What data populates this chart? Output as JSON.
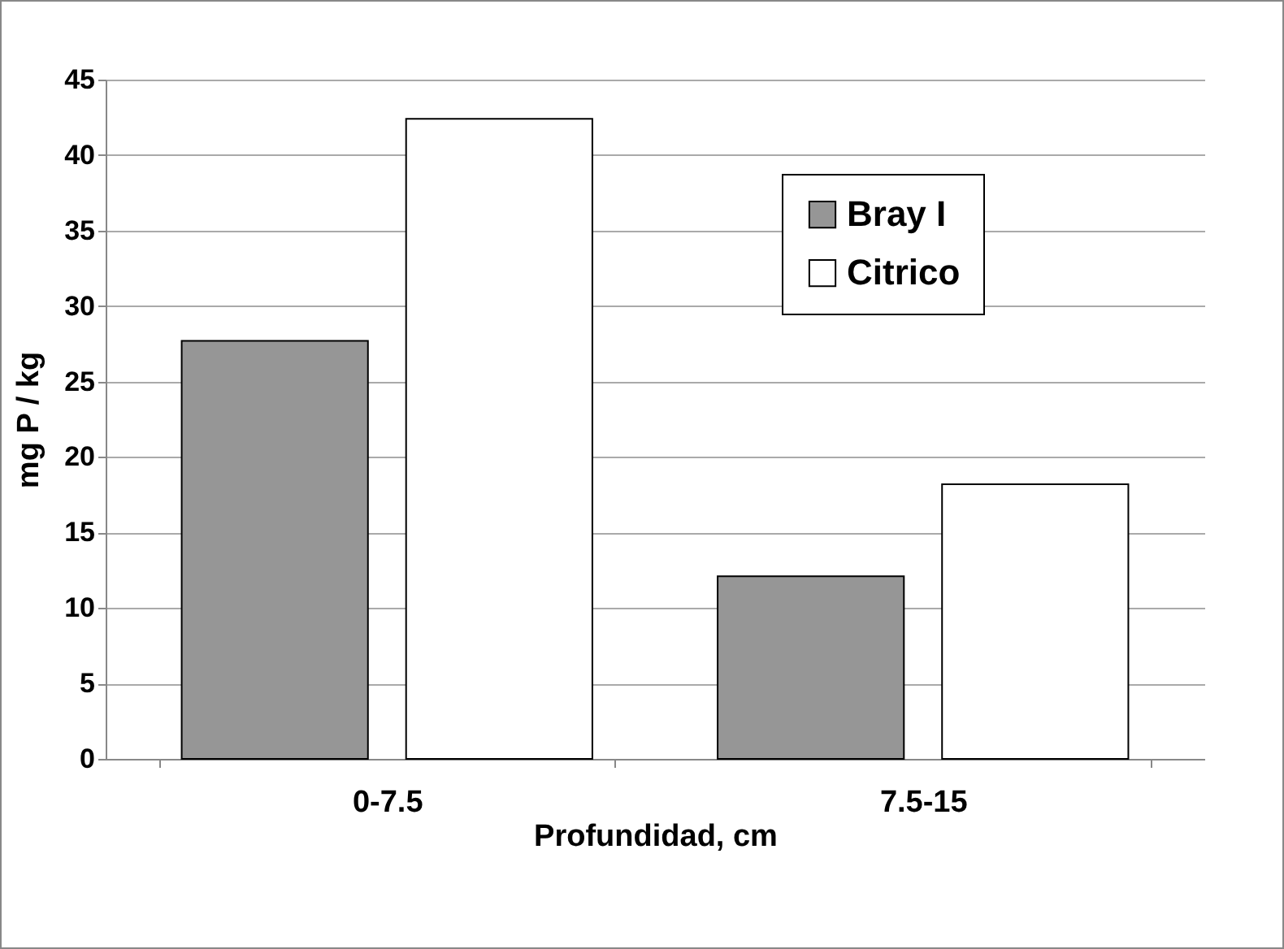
{
  "chart_data": {
    "type": "bar",
    "xlabel": "Profundidad, cm",
    "ylabel": "mg P / kg",
    "categories": [
      "0-7.5",
      "7.5-15"
    ],
    "series": [
      {
        "name": "Bray I",
        "color": "#969696",
        "values": [
          27.7,
          12.1
        ]
      },
      {
        "name": "Citrico",
        "color": "#ffffff",
        "values": [
          42.4,
          18.2
        ]
      }
    ],
    "ylim": [
      0,
      45
    ],
    "yticks": [
      0,
      5,
      10,
      15,
      20,
      25,
      30,
      35,
      40,
      45
    ],
    "grid": "y",
    "legend": "top right"
  }
}
